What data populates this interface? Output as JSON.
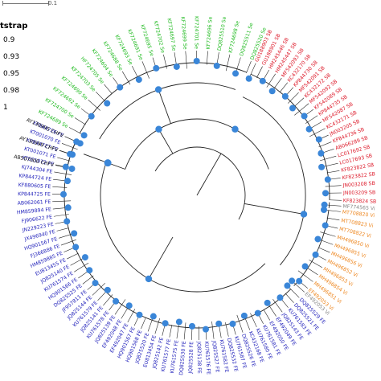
{
  "scale": {
    "label": "0.1"
  },
  "legend": {
    "title": "tstrap",
    "items": [
      "0.9",
      "0.93",
      "0.95",
      "0.98",
      "1"
    ]
  },
  "colors": {
    "green": "#22bb22",
    "red": "#dd1a2a",
    "orange": "#ee8822",
    "blue": "#2222bb",
    "black": "#111111",
    "grey": "#888888",
    "node": "#3a86d8"
  },
  "clades": [
    {
      "name": "green",
      "color": "#22bb22",
      "labels": [
        "KF724689 Se",
        "KF724700 Se",
        "KF724692 Se",
        "KF724690 Se",
        "KF724703 Se",
        "HF724705 Se",
        "KF724694 Se",
        "KF724688 Se",
        "KF724693 Se",
        "KF724691 Se",
        "KF724695 Se",
        "KF724702 Se",
        "KF724697 Se",
        "KF724699 Se",
        "KF724701 Se",
        "KF724696 Se",
        "DQ825510 Se",
        "KF724698 Se",
        "DQ825511 Se",
        "DQ825520 Se"
      ]
    },
    {
      "name": "red",
      "color": "#dd1a2a",
      "labels": [
        "GU188903 SB",
        "GU188901 SB",
        "HM245446 SB",
        "HM245447 SB",
        "MF542093 SB",
        "KC432170 SB",
        "KP844730 SB",
        "MF542091 SB",
        "KC432172 SB",
        "MF542092 SB",
        "KF542089 SB",
        "KP844735 SB",
        "MF542087 SB",
        "KC432171 SB",
        "JN003205 SB",
        "KP844736 SB",
        "AB066289 SB",
        "LC017692 SB",
        "LC017693 SB",
        "KF823822 SB",
        "KF823822 SB",
        "JN003208 SB",
        "JN003209 SB",
        "KF823824 SB"
      ]
    },
    {
      "name": "grey",
      "color": "#888888",
      "labels": [
        "MF774565 Vi"
      ]
    },
    {
      "name": "orange",
      "color": "#ee8822",
      "labels": [
        "MT708820 Vi",
        "MT708823 Vi",
        "MT708822 Vi",
        "MH496850 Vi",
        "MH496855 Vi",
        "MH496856 Vi",
        "MH496852 Vi",
        "MH496853 Vi",
        "MH496854 Vi",
        "MH496851 Vi",
        "EF492053 Vi"
      ]
    },
    {
      "name": "grey2",
      "color": "#888888",
      "labels": [
        "EF492053 Vi"
      ]
    },
    {
      "name": "blue",
      "color": "#2222bb",
      "labels": [
        "DQ825529 FE",
        "DQ825521 FE",
        "KU761583 FE",
        "JQ825143 FE",
        "EF492049 FE",
        "EF492050 FE",
        "KU761581 FE",
        "KU761580 FE",
        "KC432168 FE",
        "DQ825526 FE",
        "KU761587 FE",
        "DQ825532 FE",
        "KU761582 FE",
        "JQ825527 FE",
        "KU761576 FE",
        "JQ825138 FE",
        "JQ825528 FE",
        "DQ825530 FE",
        "KU761575 FE",
        "KU761577 FE",
        "JQ825142 FE",
        "EU813454 FE",
        "JQ825520 FE",
        "HQ901568 FE",
        "HQ901567 FE",
        "EF492047 FE",
        "EF492048 FE",
        "JQ825139 FE",
        "KU761578 FE",
        "JQ825141 FE",
        "KU761579 FE",
        "JQ825144 FE",
        "JF957811 FE",
        "DQ825525 FE",
        "HQ901566 FE",
        "KU761574 FE",
        "JQ825140 FE",
        "EU813455 FE",
        "HM859885 FE",
        "FJ366886 FE",
        "HQ901567 FE",
        "JX496940 FE",
        "JN229223 FE",
        "FJ906622 FE",
        "HM859894 FE",
        "AB062061 FE",
        "KP844725 FE",
        "KF880605 FE",
        "KP844724 FE",
        "KJ744304 FE",
        "KT001072 FE",
        "KT001071 FE",
        "KP844727 FE",
        "KT001070 FE",
        "KP844726 FE"
      ]
    },
    {
      "name": "black",
      "color": "#111111",
      "labels": [
        "AB507000 CHFV",
        "AY130999 CHFV",
        "AY130995 CHFV"
      ]
    }
  ]
}
